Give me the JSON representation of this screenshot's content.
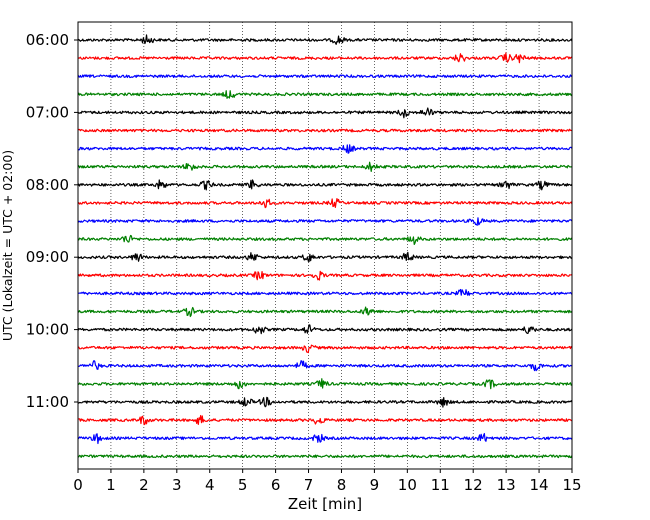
{
  "chart_data": {
    "type": "line",
    "title": "",
    "xlabel": "Zeit  [min]",
    "ylabel": "UTC (Lokalzeit = UTC + 02:00)",
    "xlim": [
      0,
      15
    ],
    "xticks": [
      0,
      1,
      2,
      3,
      4,
      5,
      6,
      7,
      8,
      9,
      10,
      11,
      12,
      13,
      14,
      15
    ],
    "xtick_labels": [
      "0",
      "1",
      "2",
      "3",
      "4",
      "5",
      "6",
      "7",
      "8",
      "9",
      "10",
      "11",
      "12",
      "13",
      "14",
      "15"
    ],
    "ytick_labels": [
      "06:00",
      "07:00",
      "08:00",
      "09:00",
      "10:00",
      "11:00"
    ],
    "ytick_times_utc": [
      "06:00",
      "07:00",
      "08:00",
      "09:00",
      "10:00",
      "11:00"
    ],
    "trace_interval_min": 15,
    "trace_start_utc": "06:00",
    "trace_end_utc": "11:45",
    "trace_color_cycle": [
      "#000000",
      "#ff0000",
      "#0000ff",
      "#008000"
    ],
    "grid": {
      "x": true,
      "y": false,
      "style": "dotted"
    },
    "series": [
      {
        "start_utc": "06:00",
        "color": "#000000",
        "events_min": [
          2.1,
          7.9
        ]
      },
      {
        "start_utc": "06:15",
        "color": "#ff0000",
        "events_min": [
          11.6,
          13.0,
          13.4
        ]
      },
      {
        "start_utc": "06:30",
        "color": "#0000ff",
        "events_min": []
      },
      {
        "start_utc": "06:45",
        "color": "#008000",
        "events_min": [
          4.6
        ]
      },
      {
        "start_utc": "07:00",
        "color": "#000000",
        "events_min": [
          9.9,
          10.6
        ]
      },
      {
        "start_utc": "07:15",
        "color": "#ff0000",
        "events_min": []
      },
      {
        "start_utc": "07:30",
        "color": "#0000ff",
        "events_min": [
          8.2
        ]
      },
      {
        "start_utc": "07:45",
        "color": "#008000",
        "events_min": [
          3.4,
          8.9
        ]
      },
      {
        "start_utc": "08:00",
        "color": "#000000",
        "events_min": [
          2.5,
          3.9,
          5.3,
          13.0,
          14.1
        ]
      },
      {
        "start_utc": "08:15",
        "color": "#ff0000",
        "events_min": [
          5.7,
          7.8
        ]
      },
      {
        "start_utc": "08:30",
        "color": "#0000ff",
        "events_min": [
          12.1
        ]
      },
      {
        "start_utc": "08:45",
        "color": "#008000",
        "events_min": [
          1.5,
          10.2
        ]
      },
      {
        "start_utc": "09:00",
        "color": "#000000",
        "events_min": [
          1.8,
          5.3,
          7.0,
          10.0
        ]
      },
      {
        "start_utc": "09:15",
        "color": "#ff0000",
        "events_min": [
          5.5,
          7.3
        ]
      },
      {
        "start_utc": "09:30",
        "color": "#0000ff",
        "events_min": [
          11.7
        ]
      },
      {
        "start_utc": "09:45",
        "color": "#008000",
        "events_min": [
          3.4,
          8.8
        ]
      },
      {
        "start_utc": "10:00",
        "color": "#000000",
        "events_min": [
          5.5,
          7.0,
          13.7
        ]
      },
      {
        "start_utc": "10:15",
        "color": "#ff0000",
        "events_min": [
          7.0
        ]
      },
      {
        "start_utc": "10:30",
        "color": "#0000ff",
        "events_min": [
          0.5,
          6.8,
          13.9
        ]
      },
      {
        "start_utc": "10:45",
        "color": "#008000",
        "events_min": [
          4.9,
          7.4,
          12.5
        ]
      },
      {
        "start_utc": "11:00",
        "color": "#000000",
        "events_min": [
          5.1,
          5.7,
          11.1
        ]
      },
      {
        "start_utc": "11:15",
        "color": "#ff0000",
        "events_min": [
          2.0,
          3.7,
          7.3
        ]
      },
      {
        "start_utc": "11:30",
        "color": "#0000ff",
        "events_min": [
          0.6,
          7.3,
          12.3
        ]
      },
      {
        "start_utc": "11:45",
        "color": "#008000",
        "events_min": []
      }
    ]
  }
}
